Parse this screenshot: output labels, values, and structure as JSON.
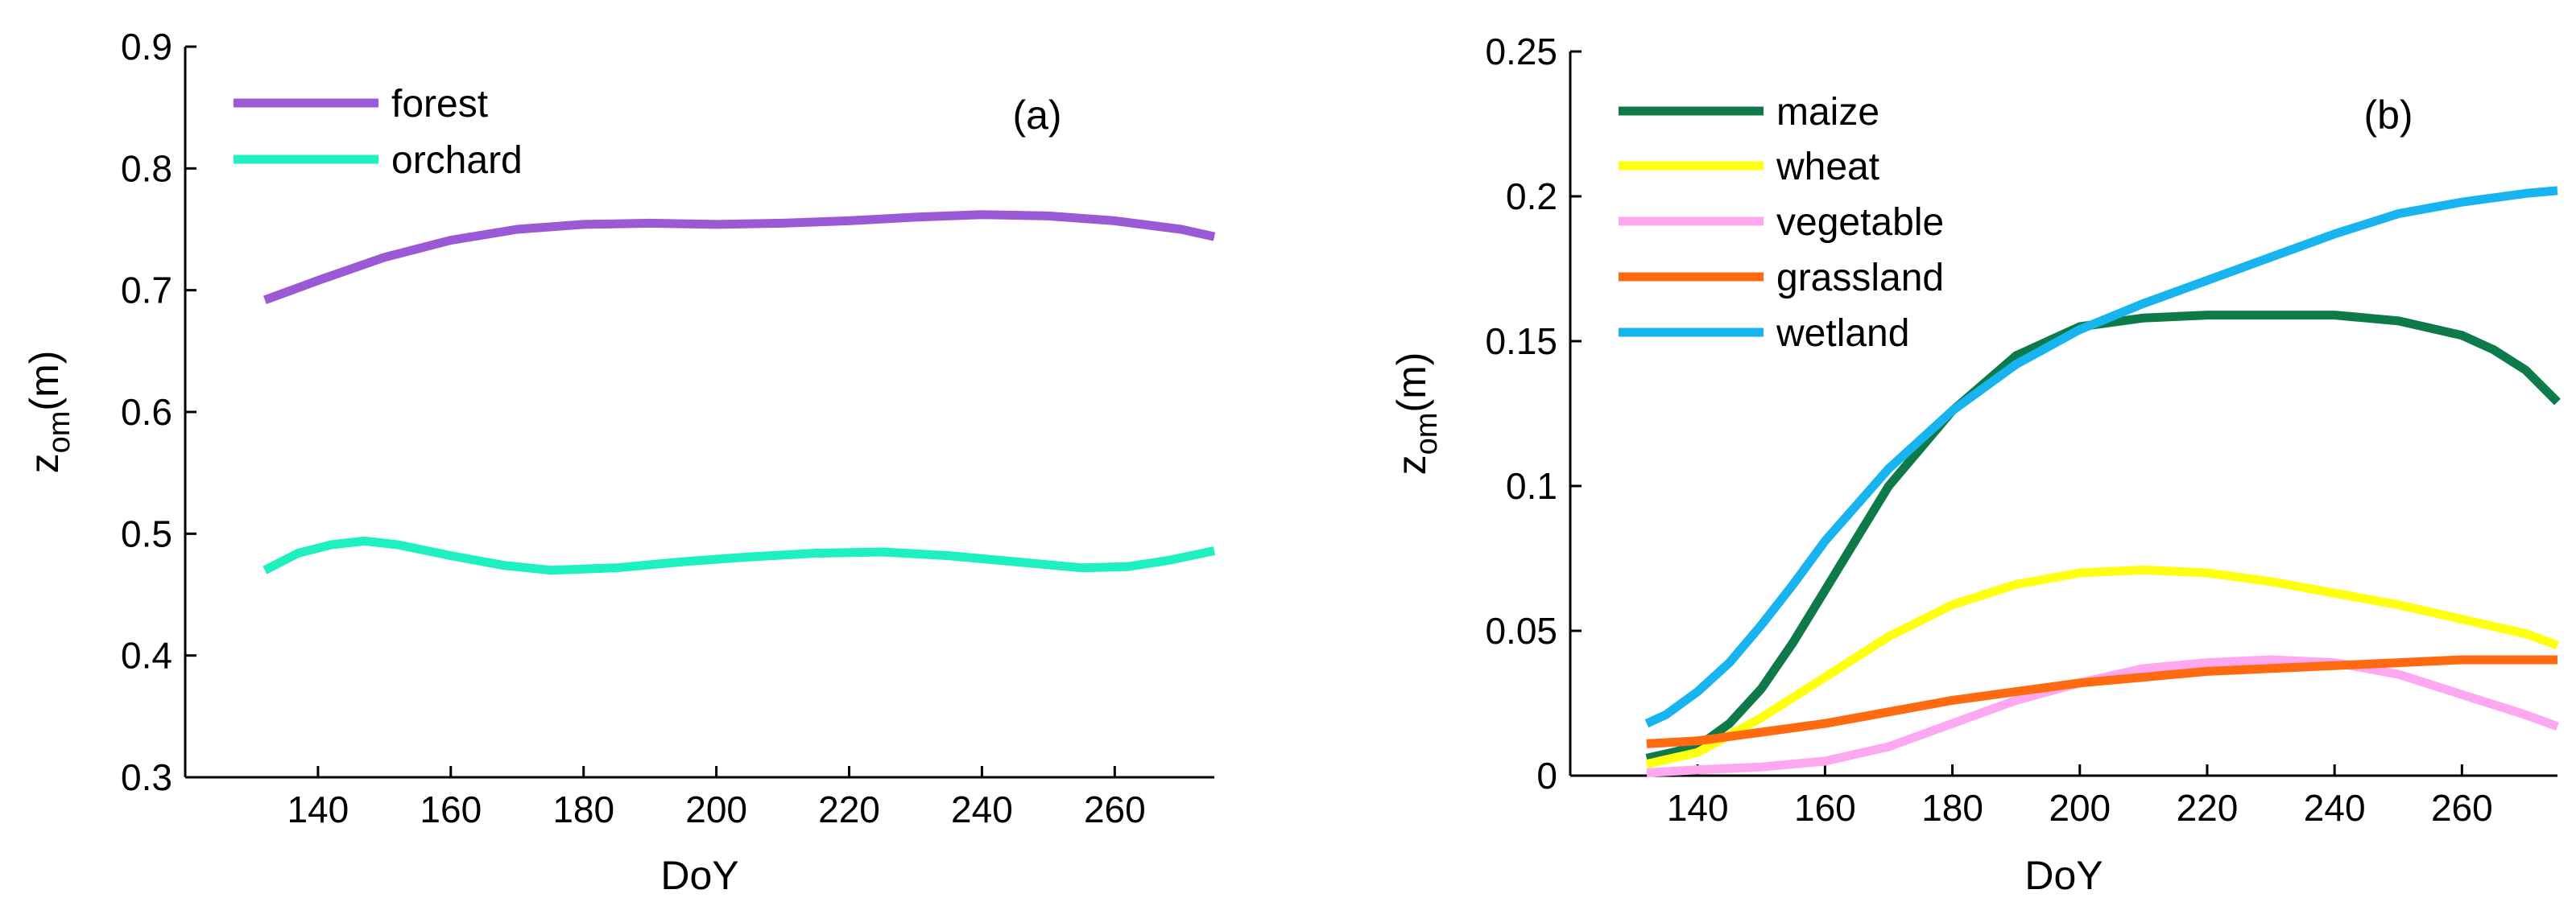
{
  "chart_data": [
    {
      "type": "line",
      "panel_label": "(a)",
      "xlabel": "DoY",
      "ylabel_main": "z",
      "ylabel_sub": "om",
      "ylabel_unit": "(m)",
      "xlim": [
        120,
        275
      ],
      "ylim": [
        0.3,
        0.9
      ],
      "xticks": [
        140,
        160,
        180,
        200,
        220,
        240,
        260
      ],
      "yticks": [
        0.3,
        0.4,
        0.5,
        0.6,
        0.7,
        0.8,
        0.9
      ],
      "ytick_labels": [
        "0.3",
        "0.4",
        "0.5",
        "0.6",
        "0.7",
        "0.8",
        "0.9"
      ],
      "legend_position": "top-left",
      "series": [
        {
          "name": "forest",
          "color": "#9b59d6",
          "x": [
            132,
            140,
            150,
            160,
            170,
            180,
            190,
            200,
            210,
            220,
            230,
            240,
            250,
            260,
            270,
            275
          ],
          "y": [
            0.692,
            0.708,
            0.727,
            0.741,
            0.75,
            0.754,
            0.755,
            0.754,
            0.755,
            0.757,
            0.76,
            0.762,
            0.761,
            0.757,
            0.75,
            0.744
          ]
        },
        {
          "name": "orchard",
          "color": "#1ef0c0",
          "x": [
            132,
            137,
            142,
            147,
            152,
            160,
            168,
            175,
            185,
            195,
            205,
            215,
            225,
            235,
            245,
            255,
            262,
            268,
            275
          ],
          "y": [
            0.47,
            0.484,
            0.491,
            0.494,
            0.491,
            0.482,
            0.474,
            0.47,
            0.472,
            0.477,
            0.481,
            0.484,
            0.485,
            0.482,
            0.477,
            0.472,
            0.473,
            0.478,
            0.486
          ]
        }
      ]
    },
    {
      "type": "line",
      "panel_label": "(b)",
      "xlabel": "DoY",
      "ylabel_main": "z",
      "ylabel_sub": "om",
      "ylabel_unit": "(m)",
      "xlim": [
        120,
        275
      ],
      "ylim": [
        0,
        0.25
      ],
      "xticks": [
        140,
        160,
        180,
        200,
        220,
        240,
        260
      ],
      "yticks": [
        0,
        0.05,
        0.1,
        0.15,
        0.2,
        0.25
      ],
      "ytick_labels": [
        "0",
        "0.05",
        "0.1",
        "0.15",
        "0.2",
        "0.25"
      ],
      "legend_position": "top-left",
      "series": [
        {
          "name": "maize",
          "color": "#0e7a4a",
          "x": [
            132,
            140,
            145,
            150,
            155,
            160,
            165,
            170,
            180,
            190,
            200,
            210,
            220,
            230,
            240,
            250,
            260,
            265,
            270,
            275
          ],
          "y": [
            0.006,
            0.01,
            0.018,
            0.03,
            0.046,
            0.064,
            0.082,
            0.1,
            0.126,
            0.145,
            0.155,
            0.158,
            0.159,
            0.159,
            0.159,
            0.157,
            0.152,
            0.147,
            0.14,
            0.129
          ]
        },
        {
          "name": "wheat",
          "color": "#ffff10",
          "x": [
            132,
            140,
            150,
            160,
            170,
            180,
            190,
            200,
            210,
            220,
            230,
            240,
            250,
            260,
            270,
            275
          ],
          "y": [
            0.004,
            0.008,
            0.02,
            0.034,
            0.048,
            0.059,
            0.066,
            0.07,
            0.071,
            0.07,
            0.067,
            0.063,
            0.059,
            0.054,
            0.049,
            0.045
          ]
        },
        {
          "name": "vegetable",
          "color": "#ffa8f2",
          "x": [
            132,
            140,
            150,
            160,
            170,
            180,
            190,
            200,
            210,
            220,
            230,
            240,
            250,
            260,
            270,
            275
          ],
          "y": [
            0.001,
            0.002,
            0.003,
            0.005,
            0.01,
            0.018,
            0.026,
            0.032,
            0.037,
            0.039,
            0.04,
            0.039,
            0.035,
            0.028,
            0.021,
            0.017
          ]
        },
        {
          "name": "grassland",
          "color": "#ff6a10",
          "x": [
            132,
            140,
            150,
            160,
            170,
            180,
            190,
            200,
            210,
            220,
            230,
            240,
            250,
            260,
            270,
            275
          ],
          "y": [
            0.011,
            0.012,
            0.015,
            0.018,
            0.022,
            0.026,
            0.029,
            0.032,
            0.034,
            0.036,
            0.037,
            0.038,
            0.039,
            0.04,
            0.04,
            0.04
          ]
        },
        {
          "name": "wetland",
          "color": "#18b4f0",
          "x": [
            132,
            135,
            140,
            145,
            150,
            155,
            160,
            170,
            180,
            190,
            200,
            210,
            220,
            230,
            240,
            250,
            260,
            270,
            275
          ],
          "y": [
            0.018,
            0.021,
            0.029,
            0.039,
            0.052,
            0.066,
            0.081,
            0.106,
            0.126,
            0.142,
            0.154,
            0.163,
            0.171,
            0.179,
            0.187,
            0.194,
            0.198,
            0.201,
            0.202
          ]
        }
      ]
    }
  ]
}
